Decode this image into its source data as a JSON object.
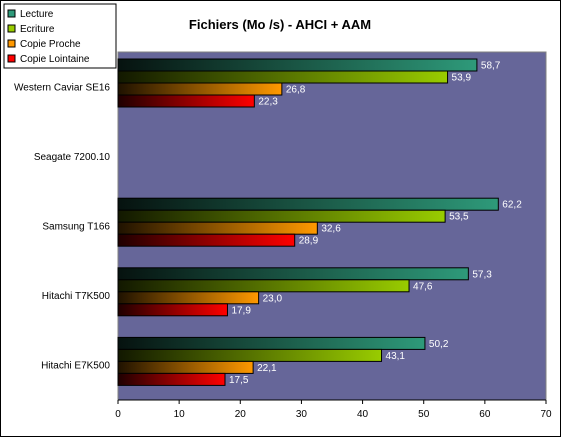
{
  "chart_data": {
    "type": "bar",
    "orientation": "horizontal",
    "title": "Fichiers (Mo /s) - AHCI + AAM",
    "categories": [
      "Western Caviar SE16",
      "Seagate 7200.10",
      "Samsung T166",
      "Hitachi T7K500",
      "Hitachi E7K500"
    ],
    "series": [
      {
        "name": "Lecture",
        "color": "#2e9a7a",
        "values": [
          58.7,
          null,
          62.2,
          57.3,
          50.2
        ]
      },
      {
        "name": "Ecriture",
        "color": "#99cc00",
        "values": [
          53.9,
          null,
          53.5,
          47.6,
          43.1
        ]
      },
      {
        "name": "Copie Proche",
        "color": "#ff9900",
        "values": [
          26.8,
          null,
          32.6,
          23.0,
          22.1
        ]
      },
      {
        "name": "Copie Lointaine",
        "color": "#ff0000",
        "values": [
          22.3,
          null,
          28.9,
          17.9,
          17.5
        ]
      }
    ],
    "data_labels": [
      [
        "58,7",
        "53,9",
        "26,8",
        "22,3"
      ],
      [
        "",
        "",
        "",
        ""
      ],
      [
        "62,2",
        "53,5",
        "32,6",
        "28,9"
      ],
      [
        "57,3",
        "47,6",
        "23,0",
        "17,9"
      ],
      [
        "50,2",
        "43,1",
        "22,1",
        "17,5"
      ]
    ],
    "xlim": [
      0,
      70
    ],
    "xticks": [
      "0",
      "10",
      "20",
      "30",
      "40",
      "50",
      "60",
      "70"
    ],
    "xlabel": "",
    "ylabel": "",
    "plot_background": "#666699",
    "grid": false,
    "legend_position": "top-left"
  }
}
